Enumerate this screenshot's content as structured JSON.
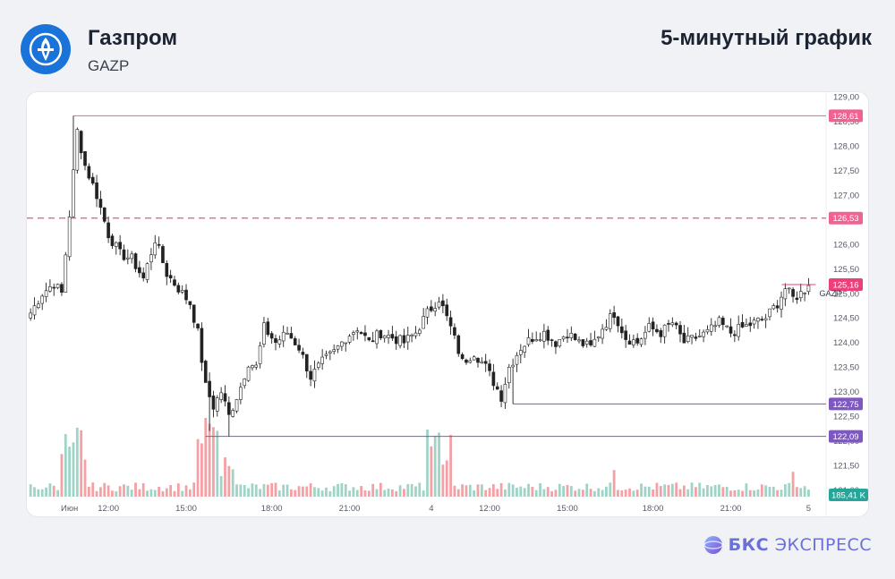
{
  "header": {
    "company_name": "Газпром",
    "ticker": "GAZP",
    "chart_caption": "5-минутный график",
    "logo_icon": "gazprom-flame-icon"
  },
  "footer": {
    "brand_bold": "БКС",
    "brand_rest": "ЭКСПРЕСС",
    "brand_icon": "bks-sphere-icon"
  },
  "colors": {
    "up": "#26a69a",
    "down": "#222222",
    "volume_up": "#9fd3c6",
    "volume_down": "#f4a1a6",
    "resistance": "#f06292",
    "support": "#7e57c2",
    "last_price": "#ec407a",
    "volume_badge": "#26a69a",
    "brand": "#6b6fd8",
    "logo": "#1a73d9"
  },
  "chart_data": {
    "type": "candlestick",
    "symbol": "GAZP",
    "timeframe": "5m",
    "ylim": [
      120.5,
      129.0
    ],
    "y_ticks": [
      "129,00",
      "128,50",
      "128,00",
      "127,50",
      "127,00",
      "126,50",
      "126,00",
      "125,50",
      "125,00",
      "124,50",
      "124,00",
      "123,50",
      "123,00",
      "122,50",
      "122,00",
      "121,50",
      "121,00"
    ],
    "x_labels": [
      "Июн",
      "12:00",
      "15:00",
      "18:00",
      "21:00",
      "4",
      "12:00",
      "15:00",
      "18:00",
      "21:00",
      "5"
    ],
    "x_label_bars": [
      10,
      20,
      40,
      62,
      82,
      103,
      118,
      138,
      160,
      180,
      200
    ],
    "bar_count": 205,
    "levels": [
      {
        "name": "high",
        "value": 128.61,
        "label": "128,61",
        "style": "solid",
        "color": "resistance",
        "from_bar": 11
      },
      {
        "name": "resistance-dashed",
        "value": 126.53,
        "label": "126,53",
        "style": "dashed",
        "color": "resistance",
        "from_bar": 0
      },
      {
        "name": "low-1",
        "value": 122.75,
        "label": "122,75",
        "style": "solid",
        "color": "support",
        "from_bar": 124
      },
      {
        "name": "low-2",
        "value": 122.09,
        "label": "122,09",
        "style": "solid",
        "color": "support",
        "from_bar": 45
      }
    ],
    "last_price": {
      "value": 125.16,
      "label": "125,16",
      "series_label": "GAZP"
    },
    "volume_badge": "185,41 K",
    "price_path": [
      [
        0,
        124.6
      ],
      [
        3,
        125.0
      ],
      [
        6,
        125.2
      ],
      [
        8,
        125.0
      ],
      [
        10,
        126.6
      ],
      [
        12,
        128.3
      ],
      [
        14,
        127.6
      ],
      [
        17,
        127.0
      ],
      [
        20,
        126.2
      ],
      [
        23,
        125.8
      ],
      [
        26,
        125.7
      ],
      [
        29,
        125.3
      ],
      [
        32,
        126.1
      ],
      [
        35,
        125.4
      ],
      [
        38,
        125.1
      ],
      [
        41,
        124.8
      ],
      [
        43,
        124.2
      ],
      [
        45,
        123.1
      ],
      [
        47,
        122.7
      ],
      [
        49,
        123.0
      ],
      [
        51,
        122.5
      ],
      [
        54,
        123.1
      ],
      [
        56,
        123.6
      ],
      [
        58,
        123.5
      ],
      [
        60,
        124.3
      ],
      [
        63,
        124.0
      ],
      [
        66,
        124.2
      ],
      [
        69,
        123.9
      ],
      [
        72,
        123.3
      ],
      [
        75,
        123.6
      ],
      [
        78,
        123.8
      ],
      [
        81,
        124.1
      ],
      [
        84,
        124.3
      ],
      [
        87,
        124.0
      ],
      [
        90,
        124.2
      ],
      [
        93,
        124.1
      ],
      [
        96,
        124.0
      ],
      [
        99,
        124.2
      ],
      [
        102,
        124.6
      ],
      [
        105,
        124.9
      ],
      [
        108,
        124.3
      ],
      [
        111,
        123.6
      ],
      [
        114,
        123.8
      ],
      [
        117,
        123.5
      ],
      [
        119,
        123.2
      ],
      [
        121,
        122.9
      ],
      [
        123,
        123.5
      ],
      [
        126,
        123.9
      ],
      [
        129,
        124.1
      ],
      [
        132,
        124.2
      ],
      [
        135,
        124.0
      ],
      [
        138,
        124.2
      ],
      [
        141,
        124.0
      ],
      [
        144,
        123.9
      ],
      [
        147,
        124.3
      ],
      [
        150,
        124.6
      ],
      [
        153,
        124.1
      ],
      [
        156,
        124.0
      ],
      [
        159,
        124.3
      ],
      [
        162,
        124.2
      ],
      [
        165,
        124.4
      ],
      [
        168,
        124.0
      ],
      [
        171,
        124.1
      ],
      [
        174,
        124.2
      ],
      [
        177,
        124.4
      ],
      [
        180,
        124.2
      ],
      [
        183,
        124.3
      ],
      [
        186,
        124.4
      ],
      [
        189,
        124.5
      ],
      [
        192,
        124.8
      ],
      [
        194,
        125.1
      ],
      [
        196,
        124.9
      ],
      [
        198,
        125.0
      ],
      [
        200,
        125.16
      ]
    ]
  }
}
